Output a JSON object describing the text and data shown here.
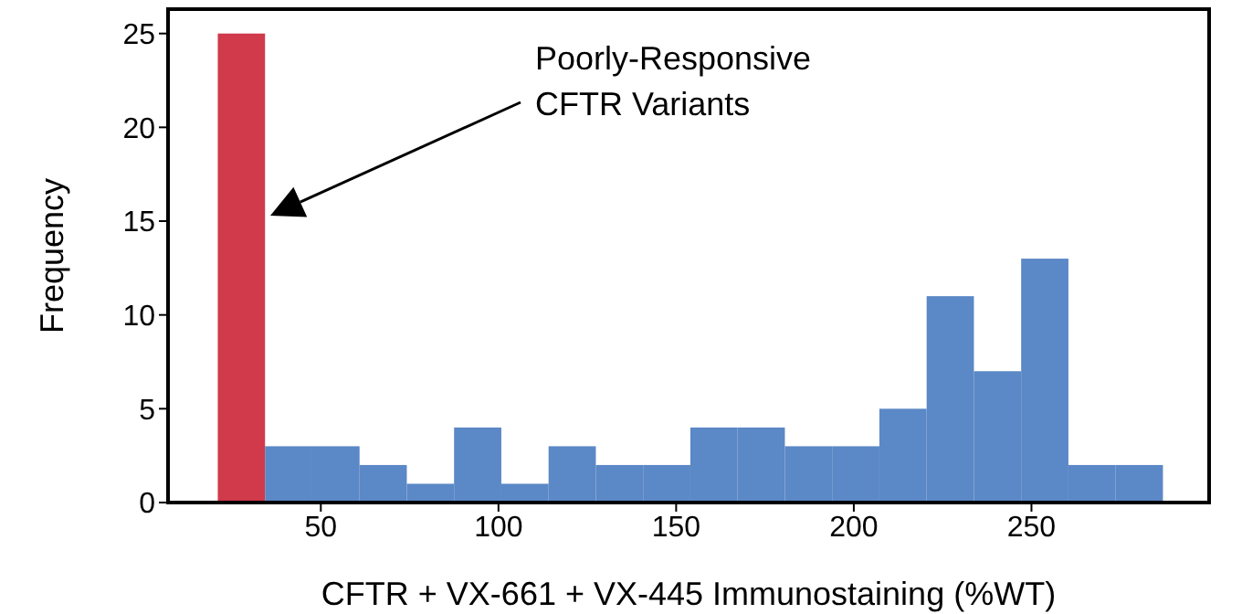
{
  "chart_data": {
    "type": "histogram",
    "xlabel": "CFTR + VX-661 + VX-445 Immunostaining (%WT)",
    "ylabel": "Frequency",
    "bins": [
      21,
      34.3,
      47.6,
      60.9,
      74.2,
      87.5,
      100.8,
      114.1,
      127.4,
      140.7,
      154,
      167.3,
      180.6,
      193.9,
      207.2,
      220.5,
      233.8,
      247.1,
      260.4,
      273.7,
      287
    ],
    "values": [
      25,
      3,
      3,
      2,
      1,
      4,
      1,
      3,
      2,
      2,
      4,
      4,
      3,
      3,
      5,
      11,
      7,
      13,
      2,
      2
    ],
    "colors": [
      "#d03a4b",
      "#5b88c6",
      "#5b88c6",
      "#5b88c6",
      "#5b88c6",
      "#5b88c6",
      "#5b88c6",
      "#5b88c6",
      "#5b88c6",
      "#5b88c6",
      "#5b88c6",
      "#5b88c6",
      "#5b88c6",
      "#5b88c6",
      "#5b88c6",
      "#5b88c6",
      "#5b88c6",
      "#5b88c6",
      "#5b88c6",
      "#5b88c6"
    ],
    "xlim": [
      7,
      300
    ],
    "xticks": [
      50,
      100,
      150,
      200,
      250
    ],
    "ylim": [
      0,
      26.3
    ],
    "yticks": [
      0,
      5,
      10,
      15,
      20,
      25
    ],
    "annotations": [
      "Poorly-Responsive\nCFTR Variants"
    ]
  }
}
